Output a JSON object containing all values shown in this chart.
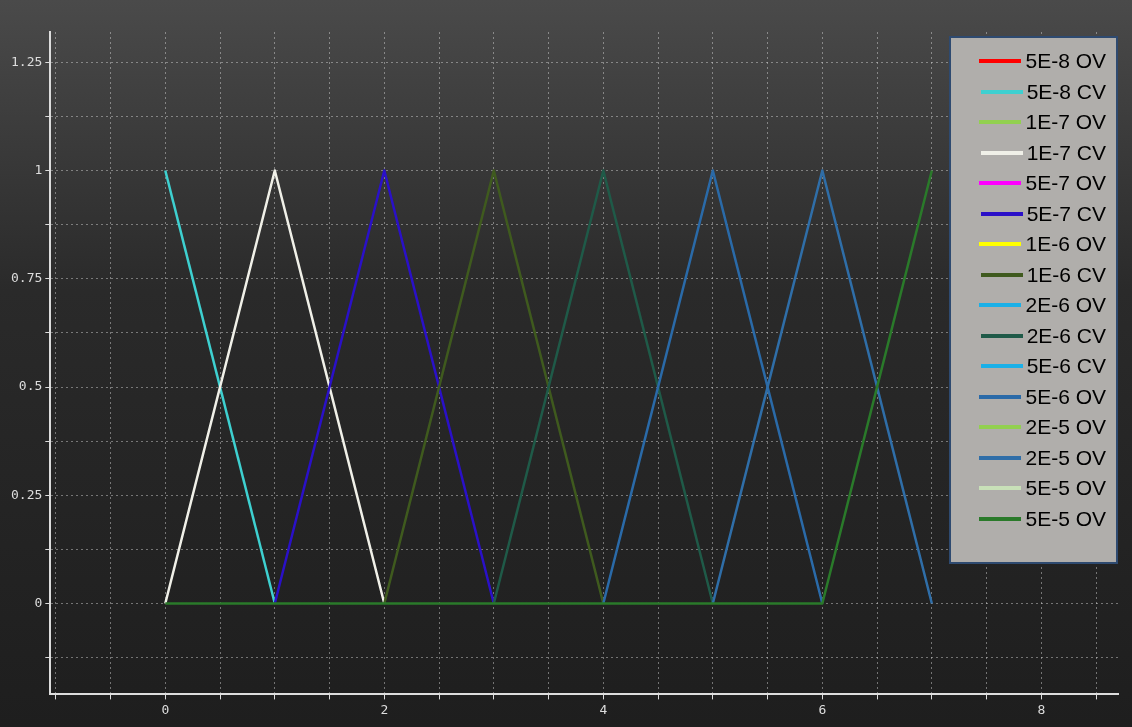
{
  "chart_data": {
    "type": "line",
    "x": [
      0,
      1,
      2,
      3,
      4,
      5,
      6,
      7
    ],
    "xlim": [
      -1.05,
      8.7
    ],
    "xticks": [
      {
        "value": -1,
        "label": null
      },
      {
        "value": -0.5,
        "label": null
      },
      0,
      {
        "value": 0.5,
        "label": null
      },
      {
        "value": 1,
        "label": null
      },
      {
        "value": 1.5,
        "label": null
      },
      2,
      {
        "value": 2.5,
        "label": null
      },
      {
        "value": 3,
        "label": null
      },
      {
        "value": 3.5,
        "label": null
      },
      4,
      {
        "value": 4.5,
        "label": null
      },
      {
        "value": 5,
        "label": null
      },
      {
        "value": 5.5,
        "label": null
      },
      6,
      {
        "value": 6.5,
        "label": null
      },
      {
        "value": 7,
        "label": null
      },
      {
        "value": 7.5,
        "label": null
      },
      8,
      {
        "value": 8.5,
        "label": null
      }
    ],
    "ylim": [
      -0.21,
      1.32
    ],
    "yticks": [
      {
        "value": -0.125,
        "label": null
      },
      0,
      {
        "value": 0.125,
        "label": null
      },
      0.25,
      {
        "value": 0.375,
        "label": null
      },
      0.5,
      {
        "value": 0.625,
        "label": null
      },
      0.75,
      {
        "value": 0.875,
        "label": null
      },
      1,
      {
        "value": 1.125,
        "label": null
      },
      1.25
    ],
    "grid": true,
    "legend": "top right",
    "marker": "none",
    "line_style": "solid",
    "series": [
      {
        "name": "5E-8 OV",
        "color": "#ff0000",
        "values": [
          null,
          null,
          null,
          null,
          null,
          null,
          null,
          null
        ]
      },
      {
        "name": "5E-8 CV",
        "color": "#3ed0d0",
        "values": [
          1,
          0,
          null,
          null,
          null,
          null,
          null,
          null
        ]
      },
      {
        "name": "1E-7 OV",
        "color": "#92d050",
        "values": [
          null,
          null,
          null,
          null,
          null,
          null,
          null,
          null
        ]
      },
      {
        "name": "1E-7 CV",
        "color": "#f0f0e8",
        "values": [
          0,
          1,
          0,
          null,
          null,
          null,
          null,
          null
        ]
      },
      {
        "name": "5E-7 OV",
        "color": "#ff00ff",
        "values": [
          null,
          null,
          null,
          null,
          null,
          null,
          null,
          null
        ]
      },
      {
        "name": "5E-7 CV",
        "color": "#2a10c8",
        "values": [
          null,
          0,
          1,
          0,
          null,
          null,
          null,
          null
        ]
      },
      {
        "name": "1E-6 OV",
        "color": "#ffff00",
        "values": [
          null,
          null,
          null,
          null,
          null,
          null,
          null,
          null
        ]
      },
      {
        "name": "1E-6 CV",
        "color": "#3f5a1e",
        "values": [
          null,
          null,
          0,
          1,
          0,
          null,
          null,
          null
        ]
      },
      {
        "name": "2E-6 OV",
        "color": "#1ab0e8",
        "values": [
          null,
          null,
          null,
          null,
          null,
          null,
          null,
          null
        ]
      },
      {
        "name": "2E-6 CV",
        "color": "#1f5a48",
        "values": [
          null,
          null,
          null,
          0,
          1,
          0,
          null,
          null
        ]
      },
      {
        "name": "5E-6 CV",
        "color": "#1ab0e8",
        "values": [
          null,
          null,
          null,
          null,
          null,
          null,
          null,
          null
        ]
      },
      {
        "name": "5E-6 OV",
        "color": "#2a6aa8",
        "values": [
          null,
          null,
          null,
          null,
          0,
          1,
          0,
          null
        ]
      },
      {
        "name": "2E-5 OV",
        "color": "#92d050",
        "values": [
          null,
          null,
          null,
          null,
          null,
          null,
          null,
          null
        ]
      },
      {
        "name": "2E-5 OV",
        "color": "#2f6ea8",
        "values": [
          null,
          null,
          null,
          null,
          null,
          0,
          1,
          0
        ]
      },
      {
        "name": "5E-5 OV",
        "color": "#c8e0b8",
        "values": [
          null,
          null,
          null,
          null,
          null,
          null,
          null,
          null
        ]
      },
      {
        "name": "5E-5 OV",
        "color": "#2a7a2a",
        "values": [
          0,
          0,
          0,
          0,
          0,
          0,
          0,
          1
        ]
      }
    ]
  }
}
